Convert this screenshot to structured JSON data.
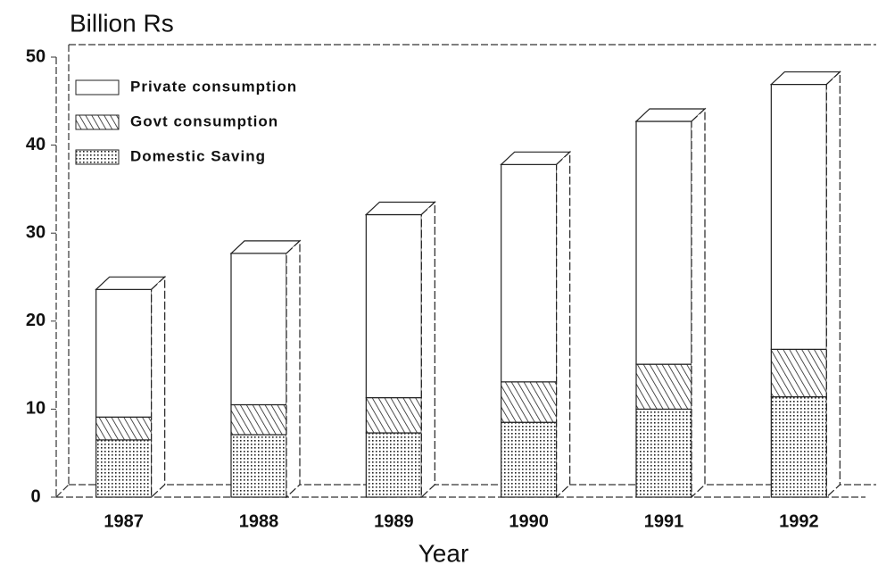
{
  "chart_data": {
    "type": "bar",
    "stacked": true,
    "title": "Billion Rs",
    "x_label": "Year",
    "categories": [
      "1987",
      "1988",
      "1989",
      "1990",
      "1991",
      "1992"
    ],
    "series": [
      {
        "name": "Private consumption",
        "color": "#ffffff",
        "values": [
          14.5,
          17.2,
          20.8,
          24.7,
          27.6,
          30.1
        ]
      },
      {
        "name": "Govt consumption",
        "color": "hatch",
        "values": [
          2.6,
          3.4,
          4.0,
          4.6,
          5.1,
          5.4
        ]
      },
      {
        "name": "Domestic Saving",
        "color": "dots",
        "values": [
          6.5,
          7.1,
          7.3,
          8.5,
          10.0,
          11.4
        ]
      }
    ],
    "ylim": [
      0,
      50
    ],
    "yticks": [
      0,
      10,
      20,
      30,
      40,
      50
    ],
    "legend": "upper left"
  }
}
